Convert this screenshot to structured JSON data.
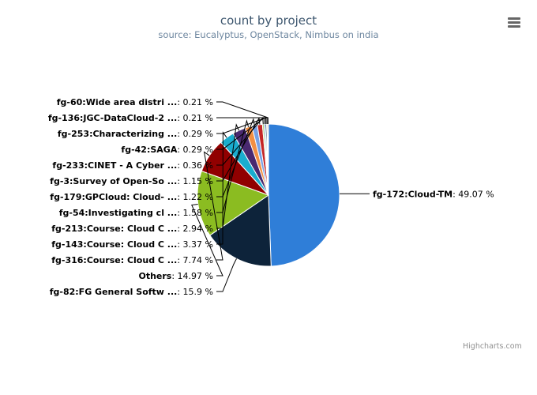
{
  "title": "count by project",
  "subtitle": "source: Eucalyptus, OpenStack, Nimbus on india",
  "menu_icon": "hamburger-menu-icon",
  "credits": "Highcharts.com",
  "chart_data": {
    "type": "pie",
    "slices": [
      {
        "name": "fg-172:Cloud-TM",
        "value": 49.07,
        "color": "#2f7ed8"
      },
      {
        "name": "fg-82:FG General Softw ...",
        "value": 15.9,
        "color": "#0d233a"
      },
      {
        "name": "Others",
        "value": 14.97,
        "color": "#8bbc21"
      },
      {
        "name": "fg-316:Course: Cloud C ...",
        "value": 7.74,
        "color": "#910000"
      },
      {
        "name": "fg-143:Course: Cloud C ...",
        "value": 3.37,
        "color": "#1aadce"
      },
      {
        "name": "fg-213:Course: Cloud C ...",
        "value": 2.94,
        "color": "#492970"
      },
      {
        "name": "fg-54:Investigating cl ...",
        "value": 1.58,
        "color": "#f28f43"
      },
      {
        "name": "fg-179:GPCloud: Cloud- ...",
        "value": 1.22,
        "color": "#77a1e5"
      },
      {
        "name": "fg-3:Survey of Open-So ...",
        "value": 1.15,
        "color": "#c42525"
      },
      {
        "name": "fg-233:CINET - A Cyber ...",
        "value": 0.36,
        "color": "#a6c96a"
      },
      {
        "name": "fg-42:SAGA",
        "value": 0.29,
        "color": "#2f7ed8"
      },
      {
        "name": "fg-253:Characterizing ...",
        "value": 0.29,
        "color": "#0d233a"
      },
      {
        "name": "fg-136:JGC-DataCloud-2 ...",
        "value": 0.21,
        "color": "#8bbc21"
      },
      {
        "name": "fg-60:Wide area distri ...",
        "value": 0.21,
        "color": "#910000"
      }
    ],
    "value_suffix": " %"
  }
}
